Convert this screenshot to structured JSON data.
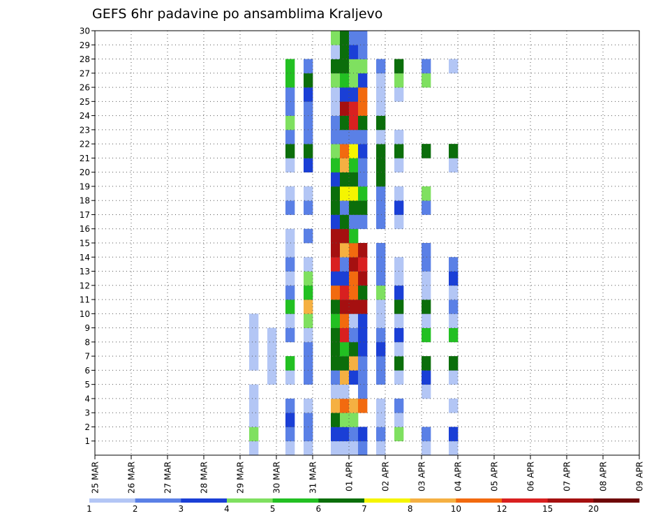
{
  "chart_data": {
    "type": "heatmap",
    "title": "GEFS 6hr padavine po ansamblima Kraljevo",
    "xlabel": "",
    "ylabel": "",
    "x_ticks": [
      "25 MAR",
      "26 MAR",
      "27 MAR",
      "28 MAR",
      "29 MAR",
      "30 MAR",
      "31 MAR",
      "01 APR",
      "02 APR",
      "03 APR",
      "04 APR",
      "05 APR",
      "06 APR",
      "07 APR",
      "08 APR",
      "09 APR"
    ],
    "x_range": [
      "2025-03-25 00Z",
      "2025-04-09 00Z"
    ],
    "time_step_hours": 6,
    "y_ticks": [
      "1",
      "2",
      "3",
      "4",
      "5",
      "6",
      "7",
      "8",
      "9",
      "10",
      "11",
      "12",
      "13",
      "14",
      "15",
      "16",
      "17",
      "18",
      "19",
      "20",
      "21",
      "22",
      "23",
      "24",
      "25",
      "26",
      "27",
      "28",
      "29",
      "30"
    ],
    "y_range": [
      0,
      30
    ],
    "grid": true,
    "legend_position": "bottom",
    "legend": {
      "labels": [
        "1",
        "2",
        "3",
        "4",
        "5",
        "6",
        "7",
        "8",
        "10",
        "12",
        "15",
        "20"
      ],
      "colors": [
        "#b3c6f5",
        "#5a80e6",
        "#1a3fd6",
        "#7fe060",
        "#22c022",
        "#0b6e0b",
        "#f5f500",
        "#f5b042",
        "#f26a0f",
        "#d92020",
        "#a51010",
        "#6e0606"
      ]
    },
    "cells_legend": "each cell: [member, step_index, colour_class]; step_index 0 = 25 MAR 00Z, one step = 6 h; colour_class 0..11 indexes legend.colors",
    "cells": [
      [
        1,
        17,
        0
      ],
      [
        2,
        17,
        3
      ],
      [
        3,
        17,
        0
      ],
      [
        4,
        17,
        0
      ],
      [
        5,
        17,
        0
      ],
      [
        7,
        17,
        0
      ],
      [
        8,
        17,
        0
      ],
      [
        9,
        17,
        0
      ],
      [
        10,
        17,
        0
      ],
      [
        6,
        19,
        0
      ],
      [
        7,
        19,
        0
      ],
      [
        8,
        19,
        0
      ],
      [
        9,
        19,
        0
      ],
      [
        1,
        21,
        0
      ],
      [
        2,
        21,
        1
      ],
      [
        3,
        21,
        2
      ],
      [
        4,
        21,
        1
      ],
      [
        6,
        21,
        0
      ],
      [
        7,
        21,
        4
      ],
      [
        9,
        21,
        1
      ],
      [
        10,
        21,
        0
      ],
      [
        11,
        21,
        4
      ],
      [
        12,
        21,
        1
      ],
      [
        13,
        21,
        0
      ],
      [
        14,
        21,
        1
      ],
      [
        15,
        21,
        0
      ],
      [
        16,
        21,
        0
      ],
      [
        18,
        21,
        1
      ],
      [
        19,
        21,
        0
      ],
      [
        21,
        21,
        0
      ],
      [
        22,
        21,
        5
      ],
      [
        23,
        21,
        1
      ],
      [
        24,
        21,
        3
      ],
      [
        25,
        21,
        1
      ],
      [
        26,
        21,
        1
      ],
      [
        27,
        21,
        4
      ],
      [
        28,
        21,
        4
      ],
      [
        1,
        23,
        0
      ],
      [
        2,
        23,
        1
      ],
      [
        3,
        23,
        1
      ],
      [
        4,
        23,
        0
      ],
      [
        6,
        23,
        1
      ],
      [
        7,
        23,
        1
      ],
      [
        8,
        23,
        1
      ],
      [
        9,
        23,
        0
      ],
      [
        10,
        23,
        3
      ],
      [
        11,
        23,
        7
      ],
      [
        12,
        23,
        4
      ],
      [
        13,
        23,
        3
      ],
      [
        14,
        23,
        0
      ],
      [
        16,
        23,
        1
      ],
      [
        18,
        23,
        1
      ],
      [
        19,
        23,
        0
      ],
      [
        21,
        23,
        2
      ],
      [
        22,
        23,
        5
      ],
      [
        23,
        23,
        1
      ],
      [
        24,
        23,
        1
      ],
      [
        25,
        23,
        1
      ],
      [
        26,
        23,
        2
      ],
      [
        27,
        23,
        5
      ],
      [
        28,
        23,
        1
      ],
      [
        1,
        26,
        0
      ],
      [
        2,
        26,
        2
      ],
      [
        3,
        26,
        5
      ],
      [
        4,
        26,
        7
      ],
      [
        5,
        26,
        0
      ],
      [
        6,
        26,
        1
      ],
      [
        7,
        26,
        5
      ],
      [
        8,
        26,
        5
      ],
      [
        9,
        26,
        5
      ],
      [
        10,
        26,
        4
      ],
      [
        11,
        26,
        5
      ],
      [
        12,
        26,
        8
      ],
      [
        13,
        26,
        2
      ],
      [
        14,
        26,
        9
      ],
      [
        15,
        26,
        10
      ],
      [
        16,
        26,
        10
      ],
      [
        17,
        26,
        2
      ],
      [
        18,
        26,
        5
      ],
      [
        19,
        26,
        5
      ],
      [
        20,
        26,
        2
      ],
      [
        21,
        26,
        4
      ],
      [
        22,
        26,
        3
      ],
      [
        23,
        26,
        1
      ],
      [
        24,
        26,
        1
      ],
      [
        25,
        26,
        0
      ],
      [
        26,
        26,
        0
      ],
      [
        27,
        26,
        3
      ],
      [
        28,
        26,
        5
      ],
      [
        29,
        26,
        0
      ],
      [
        30,
        26,
        3
      ],
      [
        1,
        27,
        0
      ],
      [
        2,
        27,
        2
      ],
      [
        3,
        27,
        3
      ],
      [
        4,
        27,
        8
      ],
      [
        5,
        27,
        0
      ],
      [
        6,
        27,
        7
      ],
      [
        7,
        27,
        5
      ],
      [
        8,
        27,
        4
      ],
      [
        9,
        27,
        9
      ],
      [
        10,
        27,
        8
      ],
      [
        11,
        27,
        10
      ],
      [
        12,
        27,
        9
      ],
      [
        13,
        27,
        2
      ],
      [
        14,
        27,
        1
      ],
      [
        15,
        27,
        7
      ],
      [
        16,
        27,
        10
      ],
      [
        17,
        27,
        5
      ],
      [
        18,
        27,
        1
      ],
      [
        19,
        27,
        6
      ],
      [
        20,
        27,
        5
      ],
      [
        21,
        27,
        7
      ],
      [
        22,
        27,
        8
      ],
      [
        23,
        27,
        1
      ],
      [
        24,
        27,
        5
      ],
      [
        25,
        27,
        10
      ],
      [
        26,
        27,
        2
      ],
      [
        27,
        27,
        4
      ],
      [
        28,
        27,
        5
      ],
      [
        29,
        27,
        5
      ],
      [
        30,
        27,
        5
      ],
      [
        1,
        28,
        0
      ],
      [
        2,
        28,
        1
      ],
      [
        3,
        28,
        3
      ],
      [
        4,
        28,
        7
      ],
      [
        6,
        28,
        2
      ],
      [
        7,
        28,
        7
      ],
      [
        8,
        28,
        5
      ],
      [
        9,
        28,
        1
      ],
      [
        10,
        28,
        0
      ],
      [
        11,
        28,
        10
      ],
      [
        12,
        28,
        8
      ],
      [
        13,
        28,
        8
      ],
      [
        14,
        28,
        10
      ],
      [
        15,
        28,
        8
      ],
      [
        16,
        28,
        4
      ],
      [
        17,
        28,
        1
      ],
      [
        18,
        28,
        5
      ],
      [
        19,
        28,
        6
      ],
      [
        20,
        28,
        5
      ],
      [
        21,
        28,
        4
      ],
      [
        22,
        28,
        6
      ],
      [
        23,
        28,
        1
      ],
      [
        24,
        28,
        9
      ],
      [
        25,
        28,
        9
      ],
      [
        26,
        28,
        2
      ],
      [
        27,
        28,
        3
      ],
      [
        28,
        28,
        3
      ],
      [
        29,
        28,
        2
      ],
      [
        30,
        28,
        1
      ],
      [
        1,
        29,
        1
      ],
      [
        2,
        29,
        2
      ],
      [
        4,
        29,
        8
      ],
      [
        5,
        29,
        1
      ],
      [
        6,
        29,
        1
      ],
      [
        7,
        29,
        1
      ],
      [
        8,
        29,
        2
      ],
      [
        9,
        29,
        2
      ],
      [
        10,
        29,
        2
      ],
      [
        11,
        29,
        10
      ],
      [
        12,
        29,
        5
      ],
      [
        13,
        29,
        10
      ],
      [
        14,
        29,
        9
      ],
      [
        15,
        29,
        10
      ],
      [
        17,
        29,
        1
      ],
      [
        18,
        29,
        5
      ],
      [
        19,
        29,
        4
      ],
      [
        20,
        29,
        1
      ],
      [
        21,
        29,
        1
      ],
      [
        22,
        29,
        2
      ],
      [
        23,
        29,
        1
      ],
      [
        24,
        29,
        5
      ],
      [
        25,
        29,
        8
      ],
      [
        26,
        29,
        8
      ],
      [
        27,
        29,
        2
      ],
      [
        28,
        29,
        3
      ],
      [
        29,
        29,
        1
      ],
      [
        30,
        29,
        1
      ],
      [
        1,
        31,
        0
      ],
      [
        2,
        31,
        1
      ],
      [
        3,
        31,
        0
      ],
      [
        4,
        31,
        0
      ],
      [
        6,
        31,
        1
      ],
      [
        7,
        31,
        1
      ],
      [
        8,
        31,
        2
      ],
      [
        9,
        31,
        1
      ],
      [
        10,
        31,
        0
      ],
      [
        11,
        31,
        0
      ],
      [
        12,
        31,
        3
      ],
      [
        13,
        31,
        1
      ],
      [
        14,
        31,
        1
      ],
      [
        15,
        31,
        1
      ],
      [
        17,
        31,
        1
      ],
      [
        18,
        31,
        1
      ],
      [
        19,
        31,
        1
      ],
      [
        20,
        31,
        5
      ],
      [
        21,
        31,
        5
      ],
      [
        22,
        31,
        5
      ],
      [
        23,
        31,
        0
      ],
      [
        24,
        31,
        5
      ],
      [
        25,
        31,
        0
      ],
      [
        26,
        31,
        0
      ],
      [
        27,
        31,
        0
      ],
      [
        28,
        31,
        1
      ],
      [
        2,
        33,
        3
      ],
      [
        3,
        33,
        0
      ],
      [
        4,
        33,
        1
      ],
      [
        6,
        33,
        0
      ],
      [
        7,
        33,
        5
      ],
      [
        8,
        33,
        0
      ],
      [
        9,
        33,
        2
      ],
      [
        10,
        33,
        0
      ],
      [
        11,
        33,
        5
      ],
      [
        12,
        33,
        2
      ],
      [
        13,
        33,
        0
      ],
      [
        14,
        33,
        0
      ],
      [
        17,
        33,
        0
      ],
      [
        18,
        33,
        2
      ],
      [
        19,
        33,
        0
      ],
      [
        21,
        33,
        0
      ],
      [
        22,
        33,
        5
      ],
      [
        23,
        33,
        0
      ],
      [
        26,
        33,
        0
      ],
      [
        27,
        33,
        3
      ],
      [
        28,
        33,
        5
      ],
      [
        1,
        36,
        0
      ],
      [
        2,
        36,
        1
      ],
      [
        5,
        36,
        0
      ],
      [
        6,
        36,
        2
      ],
      [
        7,
        36,
        5
      ],
      [
        9,
        36,
        4
      ],
      [
        10,
        36,
        0
      ],
      [
        11,
        36,
        5
      ],
      [
        12,
        36,
        0
      ],
      [
        13,
        36,
        0
      ],
      [
        14,
        36,
        1
      ],
      [
        15,
        36,
        1
      ],
      [
        18,
        36,
        1
      ],
      [
        19,
        36,
        3
      ],
      [
        22,
        36,
        5
      ],
      [
        27,
        36,
        3
      ],
      [
        28,
        36,
        1
      ],
      [
        1,
        39,
        0
      ],
      [
        2,
        39,
        2
      ],
      [
        4,
        39,
        0
      ],
      [
        6,
        39,
        0
      ],
      [
        7,
        39,
        5
      ],
      [
        9,
        39,
        4
      ],
      [
        10,
        39,
        0
      ],
      [
        11,
        39,
        1
      ],
      [
        12,
        39,
        0
      ],
      [
        13,
        39,
        2
      ],
      [
        14,
        39,
        1
      ],
      [
        21,
        39,
        0
      ],
      [
        22,
        39,
        5
      ],
      [
        28,
        39,
        0
      ]
    ]
  }
}
